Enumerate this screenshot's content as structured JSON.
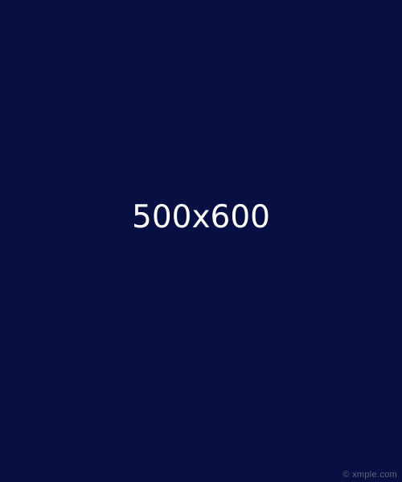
{
  "placeholder": {
    "dimensions_text": "500x600",
    "background_color": "#080f42",
    "text_color": "#ffffff"
  },
  "watermark": {
    "text": "© xmple.com",
    "color": "#5d6577"
  }
}
